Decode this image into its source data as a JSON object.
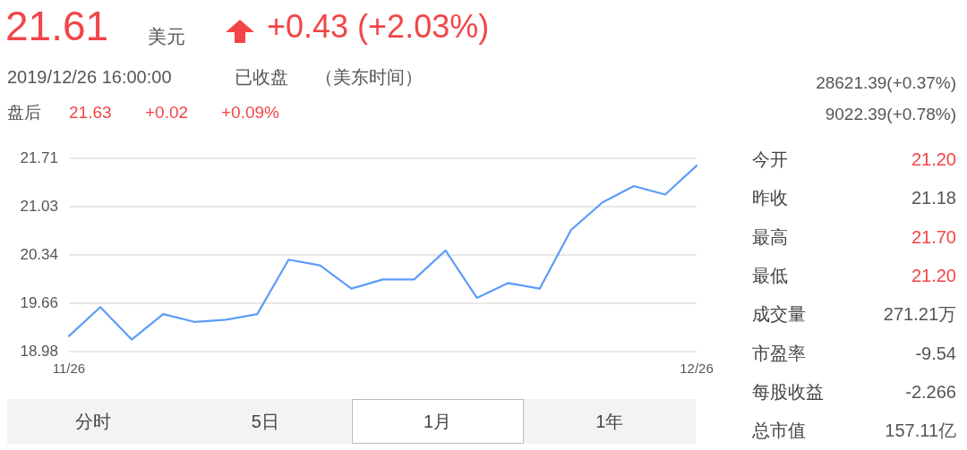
{
  "chart_data": {
    "type": "line",
    "title": "21.61",
    "categories": [
      "11/26",
      null,
      null,
      null,
      null,
      null,
      null,
      null,
      null,
      null,
      null,
      null,
      null,
      null,
      null,
      null,
      null,
      null,
      null,
      null,
      "12/26"
    ],
    "values": [
      19.2,
      19.61,
      19.15,
      19.51,
      19.4,
      19.43,
      19.51,
      20.28,
      20.2,
      19.87,
      20.0,
      20.0,
      20.41,
      19.74,
      19.95,
      19.87,
      20.7,
      21.09,
      21.32,
      21.2,
      21.61
    ],
    "color": "#5b9cf8",
    "ylim": [
      18.98,
      21.71
    ],
    "yticks": [
      18.98,
      19.66,
      20.34,
      21.03,
      21.71
    ],
    "grid": "y",
    "marker": "none",
    "annotations": [
      "美元",
      "+0.43 (+2.03%)",
      "2019/12/26 16:00:00",
      "已收盘",
      "（美东时间）",
      "盘后",
      "21.63",
      "+0.02",
      "+0.09%",
      "28621.39(+0.37%)",
      "9022.39(+0.78%)",
      "今开",
      "21.20",
      "昨收",
      "21.18",
      "最高",
      "21.70",
      "最低",
      "21.20",
      "成交量",
      "271.21万",
      "市盈率",
      "-9.54",
      "每股收益",
      "-2.266",
      "总市值",
      "157.11亿",
      "分时",
      "5日",
      "1月",
      "1年"
    ]
  }
}
